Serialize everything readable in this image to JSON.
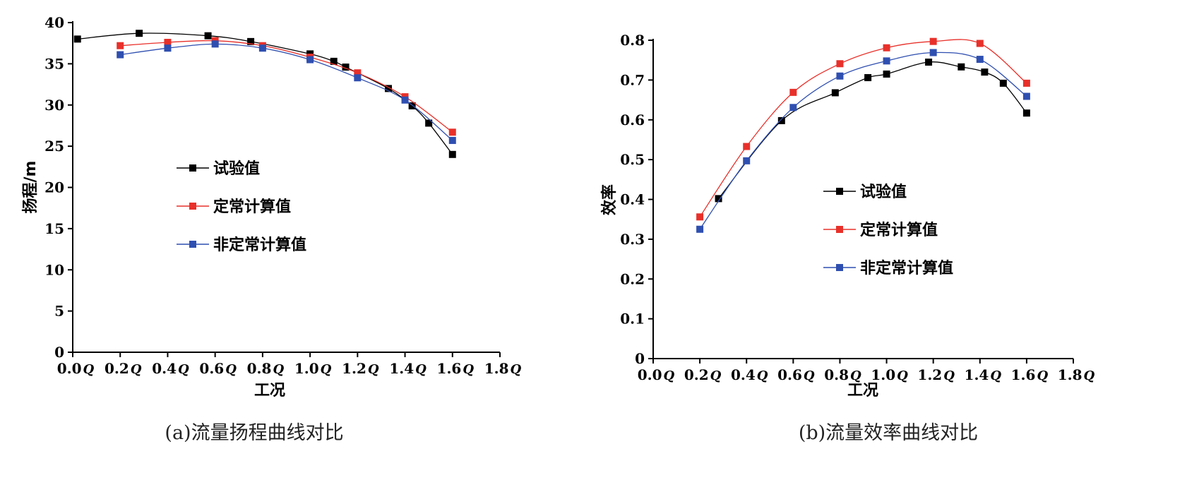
{
  "chart_data": [
    {
      "type": "line",
      "caption": "(a)流量扬程曲线对比",
      "xlabel": "工况",
      "ylabel": "扬程/m",
      "xlim": [
        0,
        1.8
      ],
      "ylim": [
        0,
        40
      ],
      "x_ticks": [
        "0.0",
        "0.2",
        "0.4",
        "0.6",
        "0.8",
        "1.0",
        "1.2",
        "1.4",
        "1.6",
        "1.8"
      ],
      "x_tick_suffix": "Q",
      "y_ticks": [
        "0",
        "5",
        "10",
        "15",
        "20",
        "25",
        "30",
        "35",
        "40"
      ],
      "legend_position": "center-left",
      "series": [
        {
          "name": "试验值",
          "color": "#000000",
          "x": [
            0.02,
            0.28,
            0.57,
            0.75,
            1.0,
            1.1,
            1.15,
            1.33,
            1.43,
            1.5,
            1.6
          ],
          "values": [
            38.0,
            38.7,
            38.4,
            37.7,
            36.2,
            35.3,
            34.6,
            32.0,
            29.9,
            27.8,
            24.0
          ]
        },
        {
          "name": "定常计算值",
          "color": "#e8302a",
          "x": [
            0.2,
            0.4,
            0.6,
            0.8,
            1.0,
            1.2,
            1.4,
            1.6
          ],
          "values": [
            37.2,
            37.6,
            37.8,
            37.2,
            35.8,
            33.9,
            31.0,
            26.7
          ]
        },
        {
          "name": "非定常计算值",
          "color": "#2f4fb0",
          "x": [
            0.2,
            0.4,
            0.6,
            0.8,
            1.0,
            1.2,
            1.4,
            1.6
          ],
          "values": [
            36.1,
            36.9,
            37.4,
            36.9,
            35.5,
            33.3,
            30.6,
            25.7
          ]
        }
      ]
    },
    {
      "type": "line",
      "caption": "(b)流量效率曲线对比",
      "xlabel": "工况",
      "ylabel": "效率",
      "xlim": [
        0,
        1.8
      ],
      "ylim": [
        0,
        0.8
      ],
      "x_ticks": [
        "0.0",
        "0.2",
        "0.4",
        "0.6",
        "0.8",
        "1.0",
        "1.2",
        "1.4",
        "1.6",
        "1.8"
      ],
      "x_tick_suffix": "Q",
      "y_ticks": [
        "0",
        "0.1",
        "0.2",
        "0.3",
        "0.4",
        "0.5",
        "0.6",
        "0.7",
        "0.8"
      ],
      "legend_position": "center-right",
      "series": [
        {
          "name": "试验值",
          "color": "#000000",
          "x": [
            0.28,
            0.55,
            0.78,
            0.92,
            1.0,
            1.18,
            1.32,
            1.42,
            1.5,
            1.6
          ],
          "values": [
            0.402,
            0.598,
            0.668,
            0.706,
            0.715,
            0.745,
            0.733,
            0.72,
            0.692,
            0.617
          ]
        },
        {
          "name": "定常计算值",
          "color": "#e8302a",
          "x": [
            0.2,
            0.4,
            0.6,
            0.8,
            1.0,
            1.2,
            1.4,
            1.6
          ],
          "values": [
            0.356,
            0.533,
            0.669,
            0.741,
            0.781,
            0.797,
            0.792,
            0.692
          ]
        },
        {
          "name": "非定常计算值",
          "color": "#2f4fb0",
          "x": [
            0.2,
            0.4,
            0.6,
            0.8,
            1.0,
            1.2,
            1.4,
            1.6
          ],
          "values": [
            0.325,
            0.497,
            0.631,
            0.71,
            0.748,
            0.769,
            0.752,
            0.659
          ]
        }
      ]
    }
  ]
}
